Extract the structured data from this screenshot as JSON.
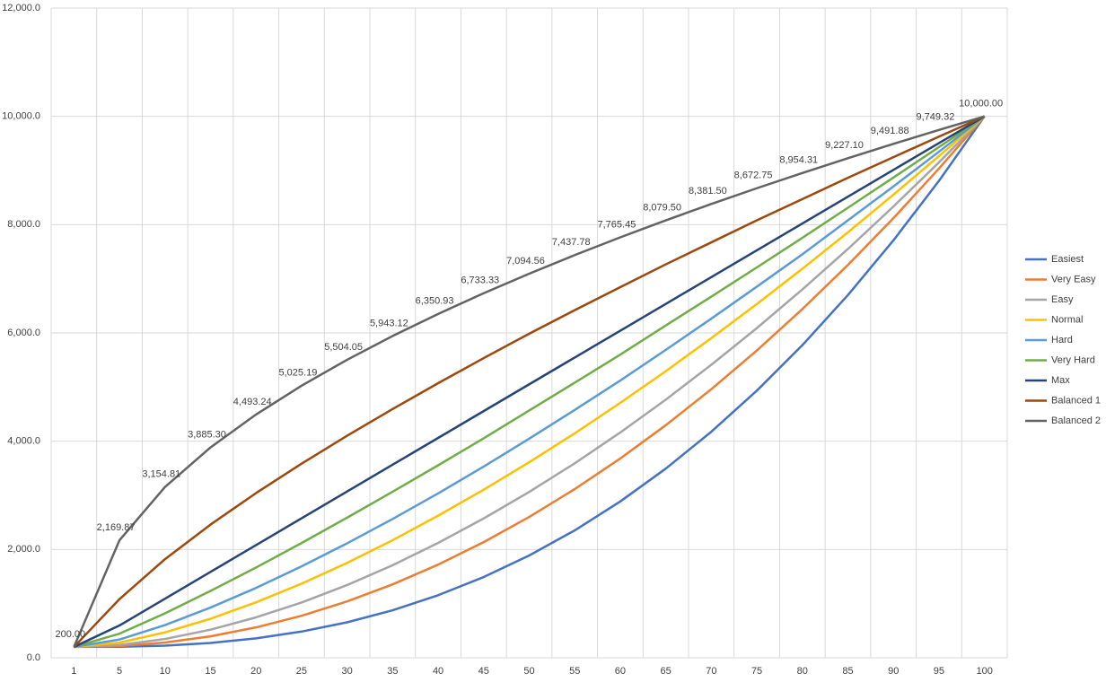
{
  "chart_data": {
    "type": "line",
    "categories": [
      "1",
      "5",
      "10",
      "15",
      "20",
      "25",
      "30",
      "35",
      "40",
      "45",
      "50",
      "55",
      "60",
      "65",
      "70",
      "75",
      "80",
      "85",
      "90",
      "95",
      "100"
    ],
    "ylim": [
      0,
      12000
    ],
    "yticks": [
      {
        "value": 0,
        "label": "0.0"
      },
      {
        "value": 2000,
        "label": "2,000.0"
      },
      {
        "value": 4000,
        "label": "4,000.0"
      },
      {
        "value": 6000,
        "label": "6,000.0"
      },
      {
        "value": 8000,
        "label": "8,000.0"
      },
      {
        "value": 10000,
        "label": "10,000.0"
      },
      {
        "value": 12000,
        "label": "12,000.0"
      }
    ],
    "grid": true,
    "legend": "right",
    "series": [
      {
        "name": "Easiest",
        "color": "#4472c4",
        "values": [
          200,
          203,
          224,
          274,
          358,
          484,
          655,
          877,
          1156,
          1491,
          1890,
          2353,
          2887,
          3494,
          4175,
          4934,
          5774,
          6699,
          7710,
          8809,
          10000
        ]
      },
      {
        "name": "Very Easy",
        "color": "#ed7d31",
        "values": [
          200,
          216,
          281,
          396,
          561,
          776,
          1041,
          1356,
          1721,
          2136,
          2601,
          3116,
          3681,
          4296,
          4961,
          5676,
          6441,
          7256,
          8120,
          9036,
          10000
        ]
      },
      {
        "name": "Easy",
        "color": "#a5a5a5",
        "values": [
          200,
          236,
          347,
          519,
          746,
          1020,
          1343,
          1709,
          2122,
          2573,
          3063,
          3592,
          4161,
          4768,
          5412,
          6089,
          6803,
          7550,
          8335,
          9150,
          10000
        ]
      },
      {
        "name": "Normal",
        "color": "#ffc000",
        "values": [
          200,
          280,
          469,
          721,
          1024,
          1369,
          1753,
          2172,
          2625,
          3105,
          3612,
          4146,
          4709,
          5294,
          5904,
          6534,
          7186,
          7859,
          8554,
          9267,
          10000
        ]
      },
      {
        "name": "Hard",
        "color": "#5b9bd5",
        "values": [
          200,
          337,
          604,
          927,
          1290,
          1688,
          2114,
          2564,
          3036,
          3531,
          4047,
          4577,
          5121,
          5687,
          6264,
          6855,
          7453,
          8080,
          8706,
          9347,
          10000
        ]
      },
      {
        "name": "Very Hard",
        "color": "#70ad47",
        "values": [
          200,
          445,
          821,
          1234,
          1667,
          2120,
          2588,
          3067,
          3555,
          4054,
          4568,
          5081,
          5600,
          6138,
          6671,
          7210,
          7757,
          8312,
          8870,
          9433,
          10000
        ]
      },
      {
        "name": "Max",
        "color": "#264478",
        "values": [
          200,
          596,
          1091,
          1586,
          2081,
          2576,
          3071,
          3566,
          4061,
          4556,
          5051,
          5546,
          6041,
          6536,
          7031,
          7526,
          8021,
          8516,
          9011,
          9506,
          10000
        ]
      },
      {
        "name": "Balanced 1",
        "color": "#9e480e",
        "values": [
          200,
          1083,
          1822,
          2460,
          3042,
          3585,
          4101,
          4594,
          5072,
          5535,
          5986,
          6421,
          6845,
          7267,
          7673,
          8080,
          8472,
          8866,
          9247,
          9626,
          10000
        ]
      },
      {
        "name": "Balanced 2",
        "color": "#636363",
        "values": [
          200,
          2169.87,
          3154.81,
          3885.3,
          4493.24,
          5025.19,
          5504.05,
          5943.12,
          6350.93,
          6733.33,
          7094.56,
          7437.78,
          7765.45,
          8079.5,
          8381.5,
          8672.75,
          8954.31,
          9227.1,
          9491.88,
          9749.32,
          10000
        ],
        "value_labels": [
          "200.00",
          "2,169.87",
          "3,154.81",
          "3,885.30",
          "4,493.24",
          "5,025.19",
          "5,504.05",
          "5,943.12",
          "6,350.93",
          "6,733.33",
          "7,094.56",
          "7,437.78",
          "7,765.45",
          "8,079.50",
          "8,381.50",
          "8,672.75",
          "8,954.31",
          "9,227.10",
          "9,491.88",
          "9,749.32",
          "10,000.00"
        ]
      }
    ]
  }
}
